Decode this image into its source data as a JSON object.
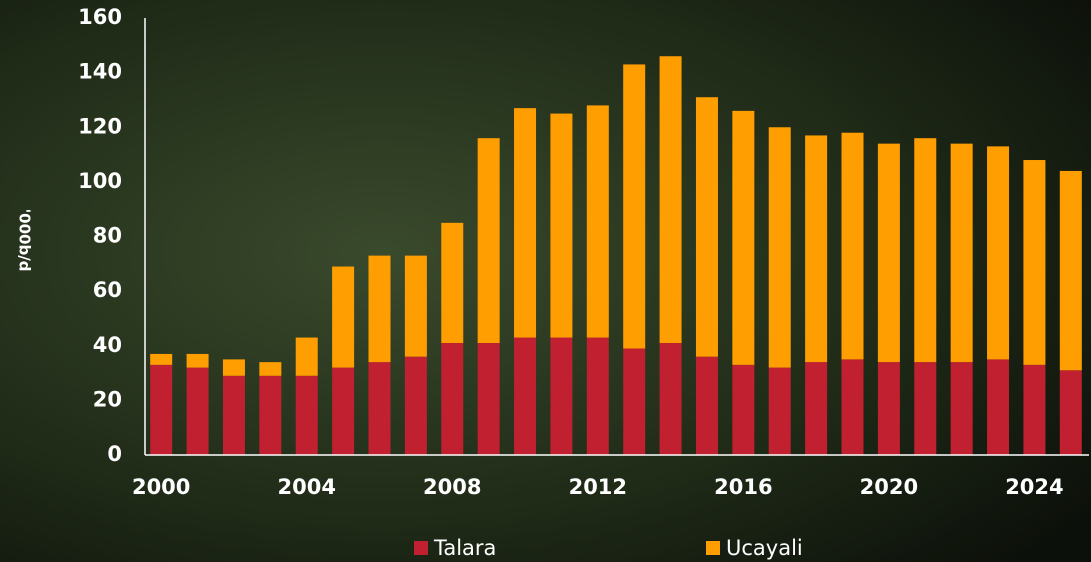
{
  "chart_data": {
    "type": "stacked-bar",
    "y_label": "'000b/d",
    "categories": [
      2000,
      null,
      null,
      null,
      2004,
      null,
      null,
      null,
      2008,
      null,
      null,
      null,
      2012,
      null,
      null,
      null,
      2016,
      null,
      null,
      null,
      2020,
      null,
      null,
      null,
      2024,
      null
    ],
    "series": [
      {
        "name": "Talara",
        "color": "#c0202f",
        "values": [
          33,
          32,
          29,
          29,
          29,
          32,
          34,
          36,
          41,
          41,
          43,
          43,
          43,
          39,
          41,
          36,
          33,
          32,
          34,
          35,
          34,
          34,
          34,
          35,
          33,
          31
        ]
      },
      {
        "name": "Ucayali",
        "color": "#ff9e00",
        "values": [
          4,
          5,
          6,
          5,
          14,
          37,
          39,
          37,
          44,
          75,
          84,
          82,
          85,
          104,
          105,
          95,
          93,
          88,
          83,
          83,
          80,
          82,
          80,
          78,
          75,
          73
        ]
      }
    ],
    "ylim": [
      0,
      160
    ],
    "yticks": [
      0,
      20,
      40,
      60,
      80,
      100,
      120,
      140,
      160
    ]
  }
}
